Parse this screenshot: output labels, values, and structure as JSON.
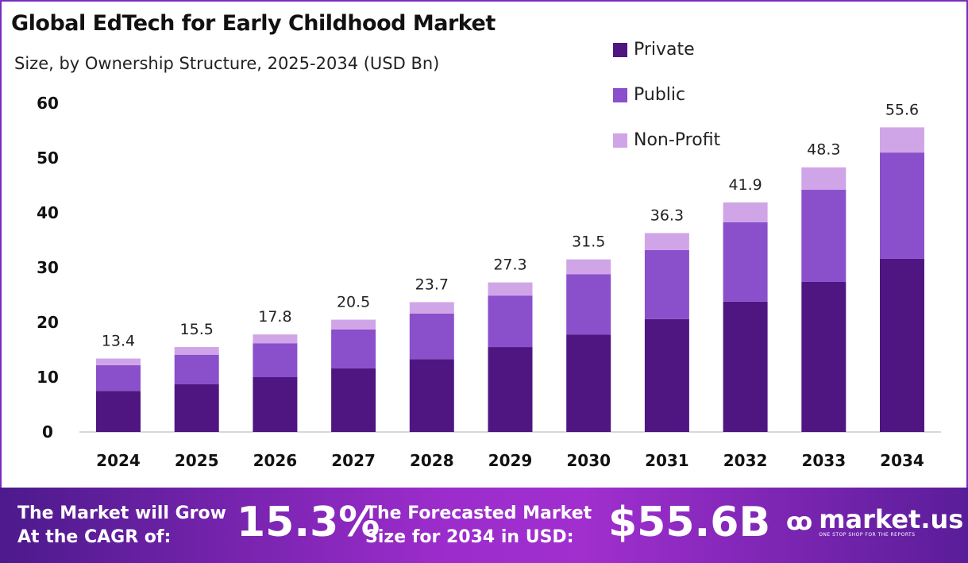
{
  "chart_data": {
    "type": "bar",
    "stacked": true,
    "title": "Global EdTech for Early Childhood Market",
    "subtitle": "Size, by Ownership Structure, 2025-2034 (USD Bn)",
    "categories": [
      "2024",
      "2025",
      "2026",
      "2027",
      "2028",
      "2029",
      "2030",
      "2031",
      "2032",
      "2033",
      "2034"
    ],
    "series": [
      {
        "name": "Private",
        "color": "#4f1682",
        "values": [
          7.5,
          8.7,
          10.0,
          11.6,
          13.3,
          15.5,
          17.8,
          20.6,
          23.8,
          27.4,
          31.6
        ]
      },
      {
        "name": "Public",
        "color": "#8a4fcb",
        "values": [
          4.7,
          5.4,
          6.2,
          7.1,
          8.3,
          9.4,
          11.0,
          12.6,
          14.5,
          16.8,
          19.4
        ]
      },
      {
        "name": "Non-Profit",
        "color": "#d0a5e8",
        "values": [
          1.2,
          1.4,
          1.6,
          1.8,
          2.1,
          2.4,
          2.7,
          3.1,
          3.6,
          4.1,
          4.6
        ]
      }
    ],
    "totals": [
      "13.4",
      "15.5",
      "17.8",
      "20.5",
      "23.7",
      "27.3",
      "31.5",
      "36.3",
      "41.9",
      "48.3",
      "55.6"
    ],
    "yticks": [
      "0",
      "10",
      "20",
      "30",
      "40",
      "50",
      "60"
    ],
    "ylim": [
      0,
      60
    ],
    "grid": false,
    "legend": "top-right"
  },
  "footer": {
    "cagr_label_1": "The Market will Grow",
    "cagr_label_2": "At the CAGR of:",
    "cagr_value": "15.3%",
    "size_label_1": "The Forecasted Market",
    "size_label_2": "Size for 2034 in USD:",
    "size_value": "$55.6B",
    "logo_name": "market.us",
    "logo_tagline": "ONE STOP SHOP FOR THE REPORTS"
  }
}
